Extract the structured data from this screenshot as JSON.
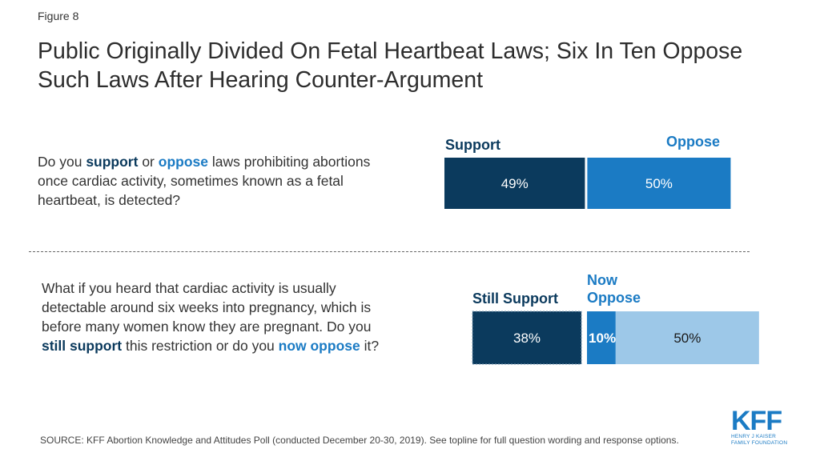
{
  "figure_label": "Figure 8",
  "title": "Public Originally Divided On Fetal Heartbeat Laws; Six In Ten Oppose Such Laws After Hearing Counter-Argument",
  "question1": {
    "t1": "Do you ",
    "k1": "support",
    "t2": " or ",
    "k2": "oppose",
    "t3": " laws prohibiting abortions once cardiac activity, sometimes known as a fetal heartbeat, is detected?"
  },
  "question2": {
    "t1": "What if you heard that cardiac activity is usually detectable around six weeks into pregnancy, which is before many women know they are pregnant. Do you ",
    "k1": "still support",
    "t2": " this restriction or do you ",
    "k2": "now oppose",
    "t3": " it?"
  },
  "labels": {
    "support": "Support",
    "oppose": "Oppose",
    "still_support": "Still Support",
    "now_oppose": "Now Oppose"
  },
  "colors": {
    "dark_navy": "#0b3a5d",
    "blue": "#1b7bc4",
    "light_blue": "#9dc8e8"
  },
  "chart_data": [
    {
      "type": "bar",
      "orientation": "horizontal-stacked",
      "categories": [
        "Support",
        "Oppose"
      ],
      "values": [
        49,
        50
      ],
      "data_labels": [
        "49%",
        "50%"
      ]
    },
    {
      "type": "bar",
      "orientation": "horizontal-stacked",
      "categories": [
        "Still Support",
        "Now Oppose",
        "Oppose"
      ],
      "values": [
        38,
        10,
        50
      ],
      "data_labels": [
        "38%",
        "10%",
        "50%"
      ]
    }
  ],
  "source": "SOURCE: KFF Abortion Knowledge and Attitudes Poll (conducted December 20-30, 2019). See topline for full question wording and response options.",
  "logo": {
    "mark": "KFF",
    "line1": "HENRY J KAISER",
    "line2": "FAMILY FOUNDATION"
  }
}
